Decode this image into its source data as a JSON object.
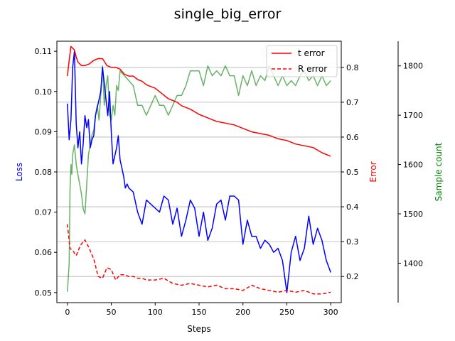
{
  "chart_data": {
    "type": "line",
    "title": "single_big_error",
    "xlabel": "Steps",
    "xlim": [
      -12,
      312
    ],
    "xticks": [
      0,
      50,
      100,
      150,
      200,
      250,
      300
    ],
    "grid": "horizontal lines at Error axis ticks",
    "legend_position": "top-right",
    "axes": {
      "loss": {
        "label": "Loss",
        "color": "#0000ff",
        "ylim": [
          0.0475,
          0.1125
        ],
        "ticks": [
          0.05,
          0.06,
          0.07,
          0.08,
          0.09,
          0.1,
          0.11
        ],
        "tick_labels": [
          "0.05",
          "0.06",
          "0.07",
          "0.08",
          "0.09",
          "0.10",
          "0.11"
        ]
      },
      "error": {
        "label": "Error",
        "color": "#ff0000",
        "ylim": [
          0.125,
          0.875
        ],
        "ticks": [
          0.2,
          0.3,
          0.4,
          0.5,
          0.6,
          0.7,
          0.8
        ],
        "tick_labels": [
          "0.2",
          "0.3",
          "0.4",
          "0.5",
          "0.6",
          "0.7",
          "0.8"
        ]
      },
      "samples": {
        "label": "Sample count",
        "color": "#008000",
        "ylim": [
          1320,
          1850
        ],
        "ticks": [
          1400,
          1500,
          1600,
          1700,
          1800
        ],
        "tick_labels": [
          "1400",
          "1500",
          "1600",
          "1700",
          "1800"
        ]
      }
    },
    "series": [
      {
        "axis": "loss",
        "color": "#0000ff",
        "style": "solid",
        "x": [
          0,
          2,
          4,
          6,
          8,
          10,
          12,
          14,
          16,
          18,
          20,
          22,
          24,
          26,
          28,
          30,
          32,
          34,
          36,
          38,
          40,
          42,
          44,
          46,
          48,
          50,
          52,
          54,
          56,
          58,
          60,
          62,
          64,
          66,
          68,
          70,
          75,
          80,
          85,
          90,
          95,
          100,
          105,
          110,
          115,
          120,
          125,
          130,
          135,
          140,
          145,
          150,
          155,
          160,
          165,
          170,
          175,
          180,
          185,
          190,
          195,
          200,
          205,
          210,
          215,
          220,
          225,
          230,
          235,
          240,
          245,
          250,
          255,
          260,
          265,
          270,
          275,
          280,
          285,
          290,
          295,
          300
        ],
        "y": [
          0.097,
          0.088,
          0.093,
          0.106,
          0.11,
          0.092,
          0.086,
          0.09,
          0.082,
          0.087,
          0.094,
          0.091,
          0.093,
          0.086,
          0.088,
          0.089,
          0.094,
          0.096,
          0.098,
          0.1,
          0.106,
          0.102,
          0.098,
          0.094,
          0.1,
          0.09,
          0.082,
          0.084,
          0.086,
          0.089,
          0.083,
          0.081,
          0.079,
          0.076,
          0.077,
          0.076,
          0.075,
          0.07,
          0.067,
          0.073,
          0.072,
          0.071,
          0.07,
          0.074,
          0.073,
          0.067,
          0.071,
          0.064,
          0.068,
          0.073,
          0.071,
          0.064,
          0.07,
          0.063,
          0.066,
          0.072,
          0.073,
          0.068,
          0.074,
          0.074,
          0.073,
          0.062,
          0.068,
          0.064,
          0.064,
          0.061,
          0.063,
          0.062,
          0.06,
          0.061,
          0.058,
          0.05,
          0.06,
          0.064,
          0.058,
          0.061,
          0.069,
          0.062,
          0.066,
          0.063,
          0.058,
          0.055
        ]
      },
      {
        "axis": "error",
        "name": "t error",
        "color": "#ff0000",
        "style": "solid",
        "x": [
          0,
          2,
          4,
          6,
          8,
          10,
          12,
          14,
          16,
          20,
          25,
          30,
          35,
          40,
          45,
          50,
          55,
          60,
          65,
          70,
          75,
          80,
          85,
          90,
          95,
          100,
          105,
          110,
          115,
          120,
          125,
          130,
          140,
          150,
          160,
          170,
          180,
          190,
          200,
          210,
          220,
          230,
          240,
          250,
          260,
          270,
          280,
          290,
          300
        ],
        "y": [
          0.775,
          0.82,
          0.86,
          0.855,
          0.85,
          0.83,
          0.815,
          0.81,
          0.805,
          0.805,
          0.81,
          0.82,
          0.825,
          0.825,
          0.805,
          0.8,
          0.8,
          0.795,
          0.78,
          0.775,
          0.775,
          0.765,
          0.76,
          0.75,
          0.745,
          0.74,
          0.73,
          0.72,
          0.71,
          0.705,
          0.7,
          0.69,
          0.68,
          0.665,
          0.655,
          0.645,
          0.64,
          0.635,
          0.625,
          0.615,
          0.61,
          0.605,
          0.595,
          0.59,
          0.58,
          0.575,
          0.57,
          0.555,
          0.545
        ]
      },
      {
        "axis": "error",
        "name": "R error",
        "color": "#ff0000",
        "style": "dashed",
        "x": [
          0,
          3,
          6,
          10,
          15,
          20,
          25,
          30,
          35,
          40,
          45,
          50,
          55,
          60,
          65,
          70,
          75,
          80,
          85,
          90,
          100,
          110,
          120,
          130,
          140,
          150,
          160,
          170,
          180,
          190,
          200,
          210,
          220,
          230,
          240,
          250,
          260,
          270,
          280,
          290,
          300
        ],
        "y": [
          0.35,
          0.28,
          0.275,
          0.26,
          0.29,
          0.305,
          0.28,
          0.25,
          0.2,
          0.195,
          0.225,
          0.22,
          0.19,
          0.205,
          0.205,
          0.2,
          0.2,
          0.195,
          0.195,
          0.19,
          0.19,
          0.195,
          0.18,
          0.175,
          0.18,
          0.175,
          0.17,
          0.175,
          0.165,
          0.165,
          0.16,
          0.175,
          0.165,
          0.16,
          0.155,
          0.16,
          0.155,
          0.16,
          0.15,
          0.15,
          0.155
        ]
      },
      {
        "axis": "samples",
        "color": "#008000",
        "alpha": 0.6,
        "style": "solid",
        "x": [
          0,
          2,
          3,
          4,
          5,
          6,
          8,
          10,
          12,
          14,
          16,
          18,
          20,
          22,
          24,
          26,
          28,
          30,
          32,
          34,
          36,
          38,
          40,
          42,
          44,
          46,
          48,
          50,
          52,
          54,
          56,
          58,
          60,
          65,
          70,
          75,
          80,
          85,
          90,
          95,
          100,
          105,
          110,
          115,
          120,
          125,
          130,
          135,
          140,
          145,
          150,
          155,
          160,
          165,
          170,
          175,
          180,
          185,
          190,
          195,
          200,
          205,
          210,
          215,
          220,
          225,
          230,
          235,
          240,
          245,
          250,
          255,
          260,
          265,
          270,
          275,
          280,
          285,
          290,
          295,
          300
        ],
        "y": [
          1342,
          1400,
          1550,
          1600,
          1580,
          1620,
          1640,
          1600,
          1580,
          1560,
          1540,
          1510,
          1500,
          1560,
          1620,
          1640,
          1660,
          1670,
          1700,
          1720,
          1690,
          1740,
          1800,
          1720,
          1760,
          1780,
          1700,
          1690,
          1720,
          1700,
          1760,
          1750,
          1790,
          1780,
          1770,
          1760,
          1720,
          1720,
          1700,
          1720,
          1740,
          1720,
          1720,
          1700,
          1720,
          1740,
          1740,
          1760,
          1790,
          1790,
          1790,
          1760,
          1800,
          1780,
          1790,
          1780,
          1800,
          1780,
          1780,
          1740,
          1780,
          1760,
          1790,
          1760,
          1780,
          1770,
          1800,
          1780,
          1760,
          1780,
          1760,
          1770,
          1760,
          1780,
          1790,
          1770,
          1780,
          1760,
          1780,
          1760,
          1770
        ]
      }
    ]
  }
}
